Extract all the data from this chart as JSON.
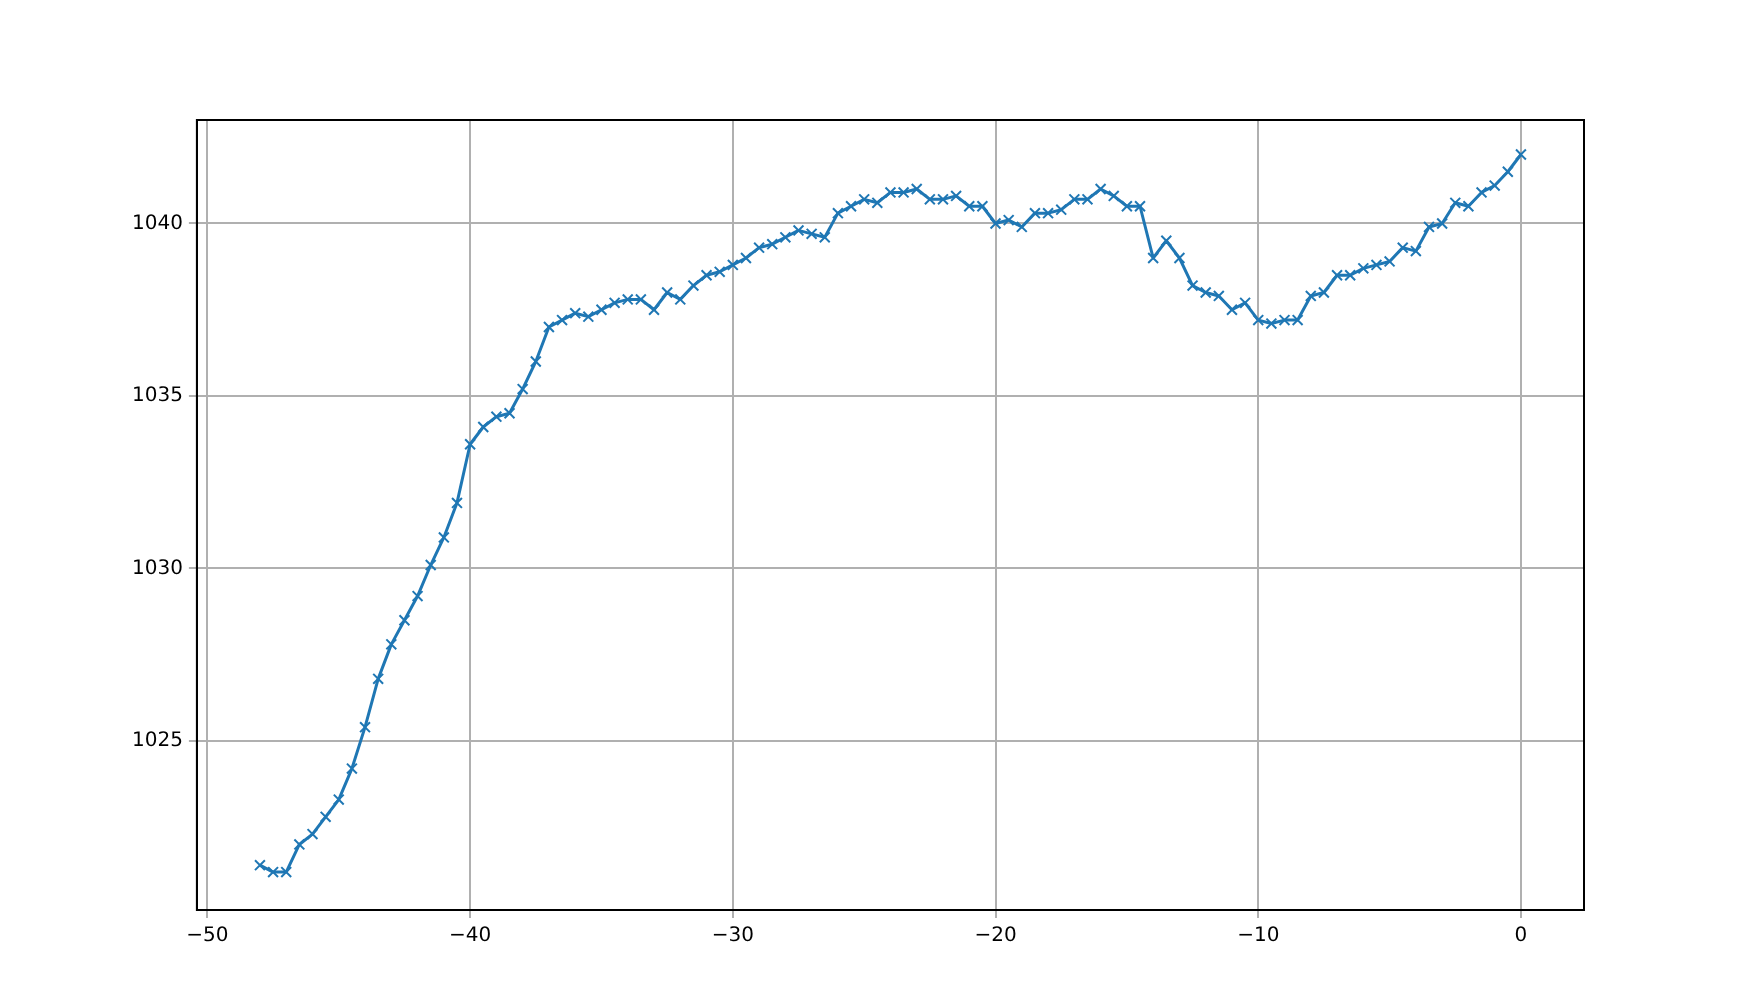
{
  "chart_data": {
    "type": "line",
    "marker": "cross",
    "grid": true,
    "legend": false,
    "xlim": [
      -50.4,
      2.4
    ],
    "xticks": [
      -50,
      -40,
      -30,
      -20,
      -10,
      0
    ],
    "ylim": [
      1020.1,
      1043.0
    ],
    "yticks": [
      1025,
      1030,
      1035,
      1040
    ],
    "x": [
      -48,
      -47.5,
      -47,
      -46.5,
      -46,
      -45.5,
      -45,
      -44.5,
      -44,
      -43.5,
      -43,
      -42.5,
      -42,
      -41.5,
      -41,
      -40.5,
      -40,
      -39.5,
      -39,
      -38.5,
      -38,
      -37.5,
      -37,
      -36.5,
      -36,
      -35.5,
      -35,
      -34.5,
      -34,
      -33.5,
      -33,
      -32.5,
      -32,
      -31.5,
      -31,
      -30.5,
      -30,
      -29.5,
      -29,
      -28.5,
      -28,
      -27.5,
      -27,
      -26.5,
      -26,
      -25.5,
      -25,
      -24.5,
      -24,
      -23.5,
      -23,
      -22.5,
      -22,
      -21.5,
      -21,
      -20.5,
      -20,
      -19.5,
      -19,
      -18.5,
      -18,
      -17.5,
      -17,
      -16.5,
      -16,
      -15.5,
      -15,
      -14.5,
      -14,
      -13.5,
      -13,
      -12.5,
      -12,
      -11.5,
      -11,
      -10.5,
      -10,
      -9.5,
      -9,
      -8.5,
      -8,
      -7.5,
      -7,
      -6.5,
      -6,
      -5.5,
      -5,
      -4.5,
      -4,
      -3.5,
      -3,
      -2.5,
      -2,
      -1.5,
      -1,
      -0.5,
      0
    ],
    "series": [
      {
        "color": "#1f77b4",
        "values": [
          1021.4,
          1021.2,
          1021.2,
          1022.0,
          1022.3,
          1022.8,
          1023.3,
          1024.2,
          1025.4,
          1026.8,
          1027.8,
          1028.5,
          1029.2,
          1030.1,
          1030.9,
          1031.9,
          1033.6,
          1034.1,
          1034.4,
          1034.5,
          1035.2,
          1036.0,
          1037.0,
          1037.2,
          1037.4,
          1037.3,
          1037.5,
          1037.7,
          1037.8,
          1037.8,
          1037.5,
          1038.0,
          1037.8,
          1038.2,
          1038.5,
          1038.6,
          1038.8,
          1039.0,
          1039.3,
          1039.4,
          1039.6,
          1039.8,
          1039.7,
          1039.6,
          1040.3,
          1040.5,
          1040.7,
          1040.6,
          1040.9,
          1040.9,
          1041.0,
          1040.7,
          1040.7,
          1040.8,
          1040.5,
          1040.5,
          1040.0,
          1040.1,
          1039.9,
          1040.3,
          1040.3,
          1040.4,
          1040.7,
          1040.7,
          1041.0,
          1040.8,
          1040.5,
          1040.5,
          1039.0,
          1039.5,
          1039.0,
          1038.2,
          1038.0,
          1037.9,
          1037.5,
          1037.7,
          1037.2,
          1037.1,
          1037.2,
          1037.2,
          1037.9,
          1038.0,
          1038.5,
          1038.5,
          1038.7,
          1038.8,
          1038.9,
          1039.3,
          1039.2,
          1039.9,
          1040.0,
          1040.6,
          1040.5,
          1040.9,
          1041.1,
          1041.5,
          1042.0
        ]
      }
    ]
  }
}
